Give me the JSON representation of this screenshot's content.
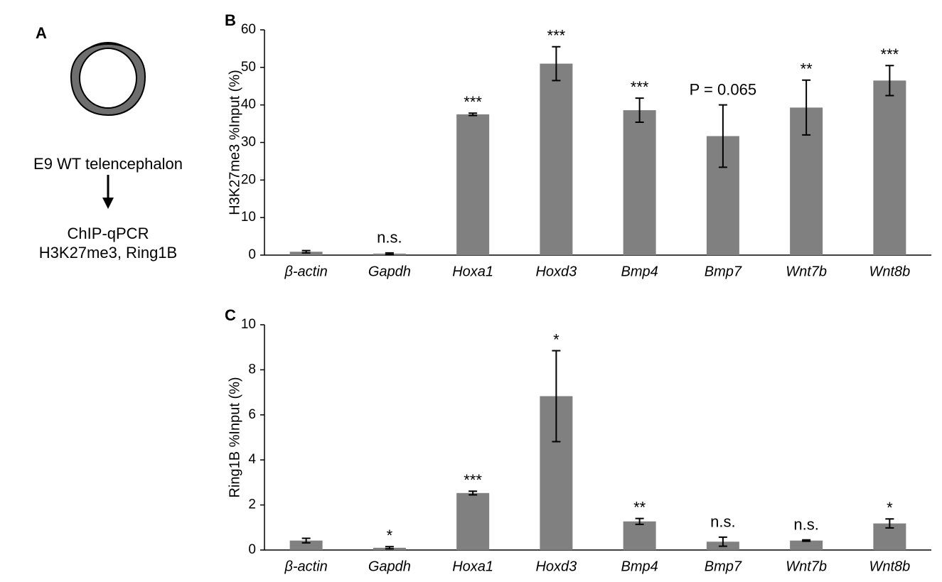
{
  "panel_a": {
    "label": "A",
    "caption": "E9 WT telencephalon",
    "method": "ChIP-qPCR",
    "targets": "H3K27me3, Ring1B"
  },
  "chart_data": [
    {
      "type": "bar",
      "label": "B",
      "y_label": "H3K27me3 %Input (%)",
      "categories": [
        "β-actin",
        "Gapdh",
        "Hoxa1",
        "Hoxd3",
        "Bmp4",
        "Bmp7",
        "Wnt7b",
        "Wnt8b"
      ],
      "values": [
        0.9,
        0.4,
        37.5,
        51,
        38.6,
        31.7,
        39.3,
        46.5
      ],
      "errors": [
        0.3,
        0.2,
        0.3,
        4.5,
        3.2,
        8.3,
        7.3,
        4
      ],
      "annotations": [
        null,
        "n.s.",
        "***",
        "***",
        "***",
        "P = 0.065",
        "**",
        "***"
      ],
      "color": "#808080",
      "ylim": [
        0,
        60
      ],
      "yticks": [
        0,
        10,
        20,
        30,
        40,
        50,
        60
      ]
    },
    {
      "type": "bar",
      "label": "C",
      "y_label": "Ring1B %Input (%)",
      "categories": [
        "β-actin",
        "Gapdh",
        "Hoxa1",
        "Hoxd3",
        "Bmp4",
        "Bmp7",
        "Wnt7b",
        "Wnt8b"
      ],
      "values": [
        0.42,
        0.1,
        2.53,
        6.83,
        1.27,
        0.37,
        0.42,
        1.18
      ],
      "errors": [
        0.1,
        0.05,
        0.08,
        2.02,
        0.13,
        0.2,
        0.03,
        0.2
      ],
      "annotations": [
        null,
        "*",
        "***",
        "*",
        "**",
        "n.s.",
        "n.s.",
        "*"
      ],
      "color": "#808080",
      "ylim": [
        0,
        10
      ],
      "yticks": [
        0,
        2,
        4,
        6,
        8,
        10
      ]
    }
  ]
}
